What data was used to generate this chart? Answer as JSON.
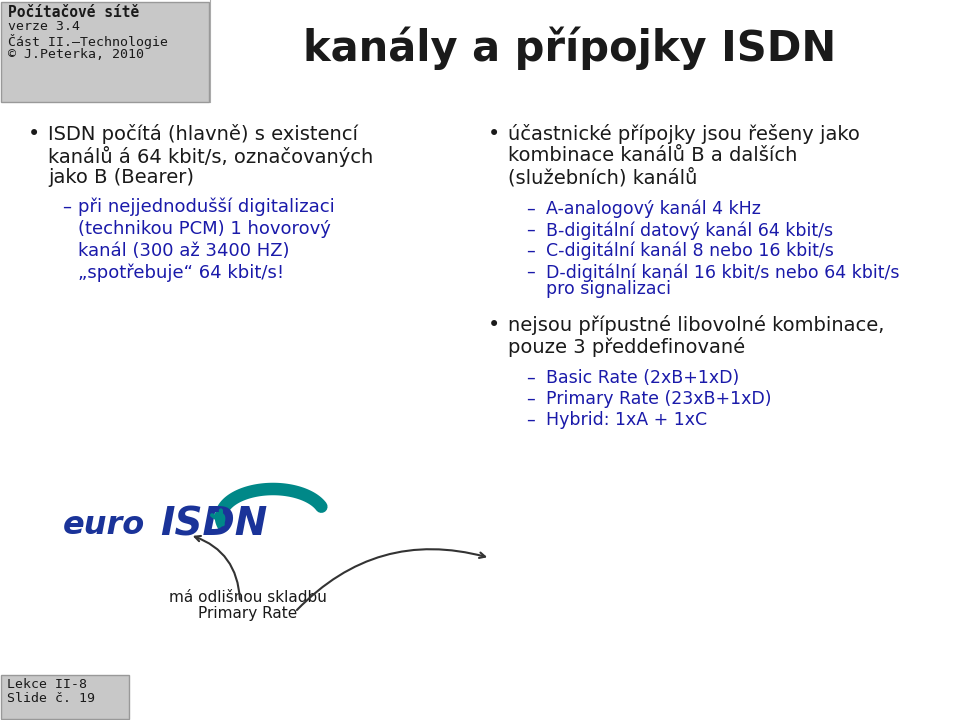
{
  "title": "kanály a přípojky ISDN",
  "header_box": {
    "line1": "Počítačové sítě",
    "line2": "verze 3.4",
    "line3": "Část II.–Technologie",
    "line4": "© J.Peterka, 2010"
  },
  "footer_box": {
    "line1": "Lekce II-8",
    "line2": "Slide č. 19"
  },
  "bullet1_main_line1": "ISDN počítá (hlavně) s existencí",
  "bullet1_main_line2": "kanálů á 64 kbit/s, označovaných",
  "bullet1_main_line3": "jako B (Bearer)",
  "bullet1_sub_line1": "při nejjednodušší digitalizaci",
  "bullet1_sub_line2": "(technikou PCM) 1 hovorový",
  "bullet1_sub_line3": "kanál (300 až 3400 HZ)",
  "bullet1_sub_line4": "„spotřebuje“ 64 kbit/s!",
  "bullet2_main_line1": "účastnické přípojky jsou řešeny jako",
  "bullet2_main_line2": "kombinace kanálů B a dalších",
  "bullet2_main_line3": "(služebních) kanálů",
  "bullet2_sub1": "A-analogový kanál 4 kHz",
  "bullet2_sub2": "B-digitální datový kanál 64 kbit/s",
  "bullet2_sub3": "C-digitální kanál 8 nebo 16 kbit/s",
  "bullet2_sub4a": "D-digitální kanál 16 kbit/s nebo 64 kbit/s",
  "bullet2_sub4b": "pro signalizaci",
  "bullet3_main_line1": "nejsou přípustné libovolné kombinace,",
  "bullet3_main_line2": "pouze 3 předdefinované",
  "bullet3_sub1": "Basic Rate (2xB+1xD)",
  "bullet3_sub2": "Primary Rate (23xB+1xD)",
  "bullet3_sub3": "Hybrid: 1xA + 1xC",
  "euro_label_line1": "má odlišnou skladbu",
  "euro_label_line2": "Primary Rate",
  "colors": {
    "background": "#ffffff",
    "header_bg": "#c8c8c8",
    "footer_bg": "#c8c8c8",
    "title_color": "#1a1a1a",
    "bullet_black": "#1a1a1a",
    "sub_blue": "#1a1aaa",
    "euro_blue": "#1a3399",
    "euro_teal": "#008888",
    "arrow_color": "#333333",
    "box_border": "#999999"
  }
}
